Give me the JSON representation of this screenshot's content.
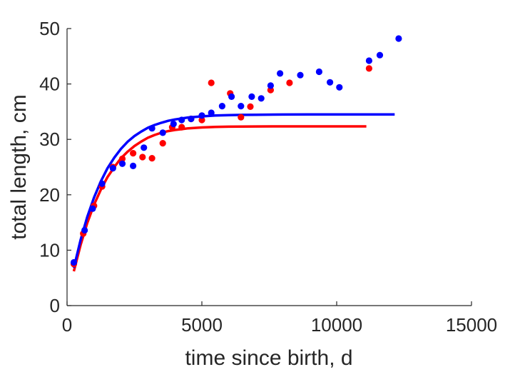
{
  "chart_data": {
    "type": "scatter",
    "title": "",
    "xlabel": "time since birth, d",
    "ylabel": "total length, cm",
    "xlim": [
      0,
      15000
    ],
    "ylim": [
      0,
      50
    ],
    "xticks": [
      0,
      5000,
      10000,
      15000
    ],
    "yticks": [
      0,
      10,
      20,
      30,
      40,
      50
    ],
    "grid": false,
    "legend": "none",
    "series": [
      {
        "color": "#ff0000",
        "kind": "points",
        "x": [
          250,
          600,
          1000,
          1300,
          1700,
          2050,
          2450,
          2800,
          3150,
          3550,
          3900,
          4250,
          4600,
          5000,
          5350,
          6050,
          6450,
          6800,
          7550,
          8250,
          11200
        ],
        "y": [
          7.5,
          13.0,
          18.0,
          21.5,
          25.0,
          26.5,
          27.5,
          26.8,
          26.6,
          29.3,
          32.2,
          32.2,
          33.7,
          33.5,
          40.2,
          38.3,
          34.0,
          35.9,
          38.9,
          40.2,
          42.8
        ]
      },
      {
        "color": "#0000ff",
        "kind": "points",
        "x": [
          250,
          650,
          950,
          1300,
          1700,
          2050,
          2450,
          2850,
          3150,
          3550,
          3950,
          4250,
          4600,
          5000,
          5350,
          5750,
          6100,
          6450,
          6850,
          7200,
          7550,
          7900,
          8650,
          9350,
          9750,
          10100,
          11200,
          11600,
          12300
        ],
        "y": [
          7.8,
          13.6,
          17.5,
          22.0,
          24.8,
          25.6,
          25.2,
          28.5,
          32.0,
          31.2,
          32.8,
          33.5,
          33.7,
          34.3,
          34.8,
          36.0,
          37.7,
          36.0,
          37.7,
          37.4,
          39.7,
          41.9,
          41.6,
          42.2,
          40.3,
          39.4,
          44.2,
          45.2,
          48.2
        ]
      },
      {
        "color": "#ff0000",
        "kind": "curve",
        "x": [
          250,
          500,
          750,
          1000,
          1250,
          1500,
          1750,
          2000,
          2250,
          2500,
          2750,
          3000,
          3250,
          3500,
          3750,
          4000,
          4500,
          5000,
          5500,
          6000,
          6500,
          7000,
          8000,
          9000,
          10000,
          11100
        ],
        "y": [
          6.2,
          10.9,
          14.9,
          18.2,
          20.9,
          23.2,
          25.0,
          26.6,
          27.8,
          28.8,
          29.6,
          30.3,
          30.8,
          31.2,
          31.5,
          31.7,
          32.0,
          32.15,
          32.25,
          32.3,
          32.32,
          32.33,
          32.35,
          32.35,
          32.35,
          32.35
        ]
      },
      {
        "color": "#0000ff",
        "kind": "curve",
        "x": [
          250,
          500,
          750,
          1000,
          1250,
          1500,
          1750,
          2000,
          2250,
          2500,
          2750,
          3000,
          3250,
          3500,
          3750,
          4000,
          4500,
          5000,
          5500,
          6000,
          6500,
          7000,
          8000,
          9000,
          10000,
          11000,
          12150
        ],
        "y": [
          6.8,
          11.8,
          16.0,
          19.5,
          22.4,
          24.8,
          26.7,
          28.3,
          29.6,
          30.6,
          31.4,
          32.1,
          32.6,
          33.0,
          33.35,
          33.6,
          33.95,
          34.15,
          34.3,
          34.38,
          34.42,
          34.45,
          34.48,
          34.5,
          34.5,
          34.5,
          34.5
        ]
      }
    ]
  }
}
